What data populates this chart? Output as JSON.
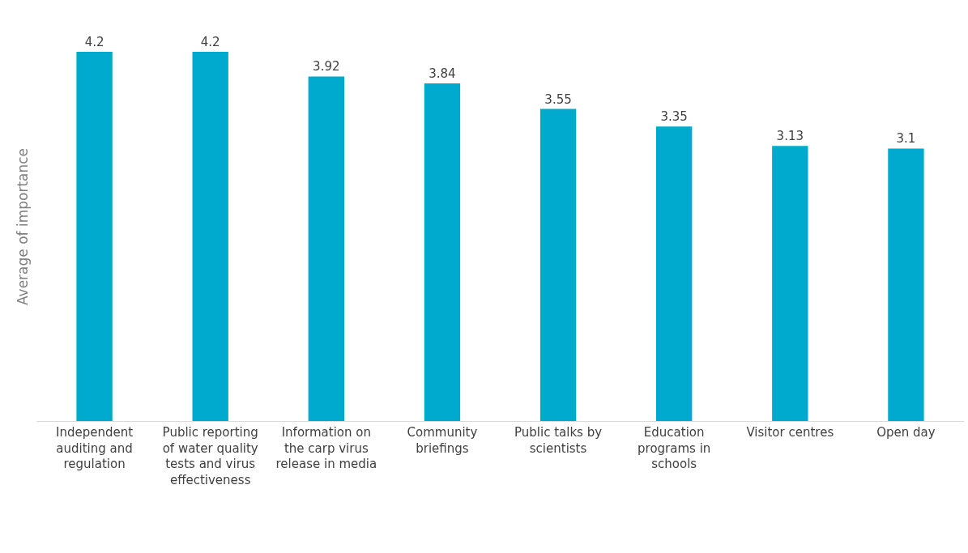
{
  "chart_data": {
    "type": "bar",
    "ylabel": "Average of importance",
    "categories": [
      "Independent auditing and regulation",
      "Public reporting of water quality tests and virus effectiveness",
      "Information on the carp virus release in media",
      "Community briefings",
      "Public talks by scientists",
      "Education programs in schools",
      "Visitor centres",
      "Open day"
    ],
    "values": [
      4.2,
      4.2,
      3.92,
      3.84,
      3.55,
      3.35,
      3.13,
      3.1
    ],
    "color": "#00a9ce",
    "data_labels": true,
    "grid": false,
    "legend": false
  }
}
